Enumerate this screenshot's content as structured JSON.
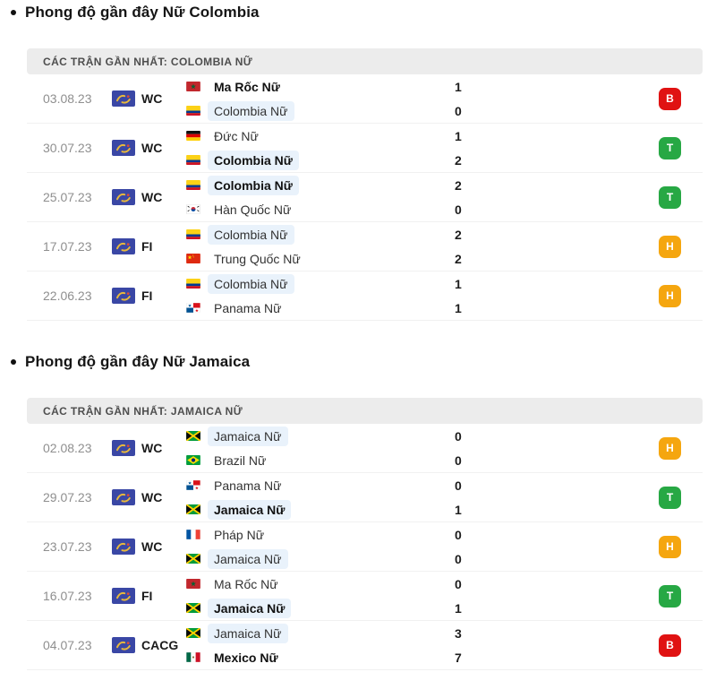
{
  "colors": {
    "win": "#27a844",
    "loss": "#e01212",
    "draw": "#f5a60f",
    "highlight": "#e9f2fb",
    "header_bg": "#ececec"
  },
  "sections": [
    {
      "title": "Phong độ gần đây Nữ Colombia",
      "table_header": "CÁC TRẬN GẦN NHẤT: COLOMBIA NỮ",
      "rows": [
        {
          "date": "03.08.23",
          "competition": "WC",
          "home": {
            "name": "Ma Rốc Nữ",
            "flag": "morocco",
            "bold": true,
            "highlight": false
          },
          "away": {
            "name": "Colombia Nữ",
            "flag": "colombia",
            "bold": false,
            "highlight": true
          },
          "home_score": "1",
          "away_score": "0",
          "result": "B",
          "result_type": "loss"
        },
        {
          "date": "30.07.23",
          "competition": "WC",
          "home": {
            "name": "Đức Nữ",
            "flag": "germany",
            "bold": false,
            "highlight": false
          },
          "away": {
            "name": "Colombia Nữ",
            "flag": "colombia",
            "bold": true,
            "highlight": true
          },
          "home_score": "1",
          "away_score": "2",
          "result": "T",
          "result_type": "win"
        },
        {
          "date": "25.07.23",
          "competition": "WC",
          "home": {
            "name": "Colombia Nữ",
            "flag": "colombia",
            "bold": true,
            "highlight": true
          },
          "away": {
            "name": "Hàn Quốc Nữ",
            "flag": "southkorea",
            "bold": false,
            "highlight": false
          },
          "home_score": "2",
          "away_score": "0",
          "result": "T",
          "result_type": "win"
        },
        {
          "date": "17.07.23",
          "competition": "FI",
          "home": {
            "name": "Colombia Nữ",
            "flag": "colombia",
            "bold": false,
            "highlight": true
          },
          "away": {
            "name": "Trung Quốc Nữ",
            "flag": "china",
            "bold": false,
            "highlight": false
          },
          "home_score": "2",
          "away_score": "2",
          "result": "H",
          "result_type": "draw"
        },
        {
          "date": "22.06.23",
          "competition": "FI",
          "home": {
            "name": "Colombia Nữ",
            "flag": "colombia",
            "bold": false,
            "highlight": true
          },
          "away": {
            "name": "Panama Nữ",
            "flag": "panama",
            "bold": false,
            "highlight": false
          },
          "home_score": "1",
          "away_score": "1",
          "result": "H",
          "result_type": "draw"
        }
      ]
    },
    {
      "title": "Phong độ gần đây Nữ Jamaica",
      "table_header": "CÁC TRẬN GẦN NHẤT: JAMAICA NỮ",
      "rows": [
        {
          "date": "02.08.23",
          "competition": "WC",
          "home": {
            "name": "Jamaica Nữ",
            "flag": "jamaica",
            "bold": false,
            "highlight": true
          },
          "away": {
            "name": "Brazil Nữ",
            "flag": "brazil",
            "bold": false,
            "highlight": false
          },
          "home_score": "0",
          "away_score": "0",
          "result": "H",
          "result_type": "draw"
        },
        {
          "date": "29.07.23",
          "competition": "WC",
          "home": {
            "name": "Panama Nữ",
            "flag": "panama",
            "bold": false,
            "highlight": false
          },
          "away": {
            "name": "Jamaica Nữ",
            "flag": "jamaica",
            "bold": true,
            "highlight": true
          },
          "home_score": "0",
          "away_score": "1",
          "result": "T",
          "result_type": "win"
        },
        {
          "date": "23.07.23",
          "competition": "WC",
          "home": {
            "name": "Pháp Nữ",
            "flag": "france",
            "bold": false,
            "highlight": false
          },
          "away": {
            "name": "Jamaica Nữ",
            "flag": "jamaica",
            "bold": false,
            "highlight": true
          },
          "home_score": "0",
          "away_score": "0",
          "result": "H",
          "result_type": "draw"
        },
        {
          "date": "16.07.23",
          "competition": "FI",
          "home": {
            "name": "Ma Rốc Nữ",
            "flag": "morocco",
            "bold": false,
            "highlight": false
          },
          "away": {
            "name": "Jamaica Nữ",
            "flag": "jamaica",
            "bold": true,
            "highlight": true
          },
          "home_score": "0",
          "away_score": "1",
          "result": "T",
          "result_type": "win"
        },
        {
          "date": "04.07.23",
          "competition": "CACG",
          "home": {
            "name": "Jamaica Nữ",
            "flag": "jamaica",
            "bold": false,
            "highlight": true
          },
          "away": {
            "name": "Mexico Nữ",
            "flag": "mexico",
            "bold": true,
            "highlight": false
          },
          "home_score": "3",
          "away_score": "7",
          "result": "B",
          "result_type": "loss"
        }
      ]
    }
  ]
}
